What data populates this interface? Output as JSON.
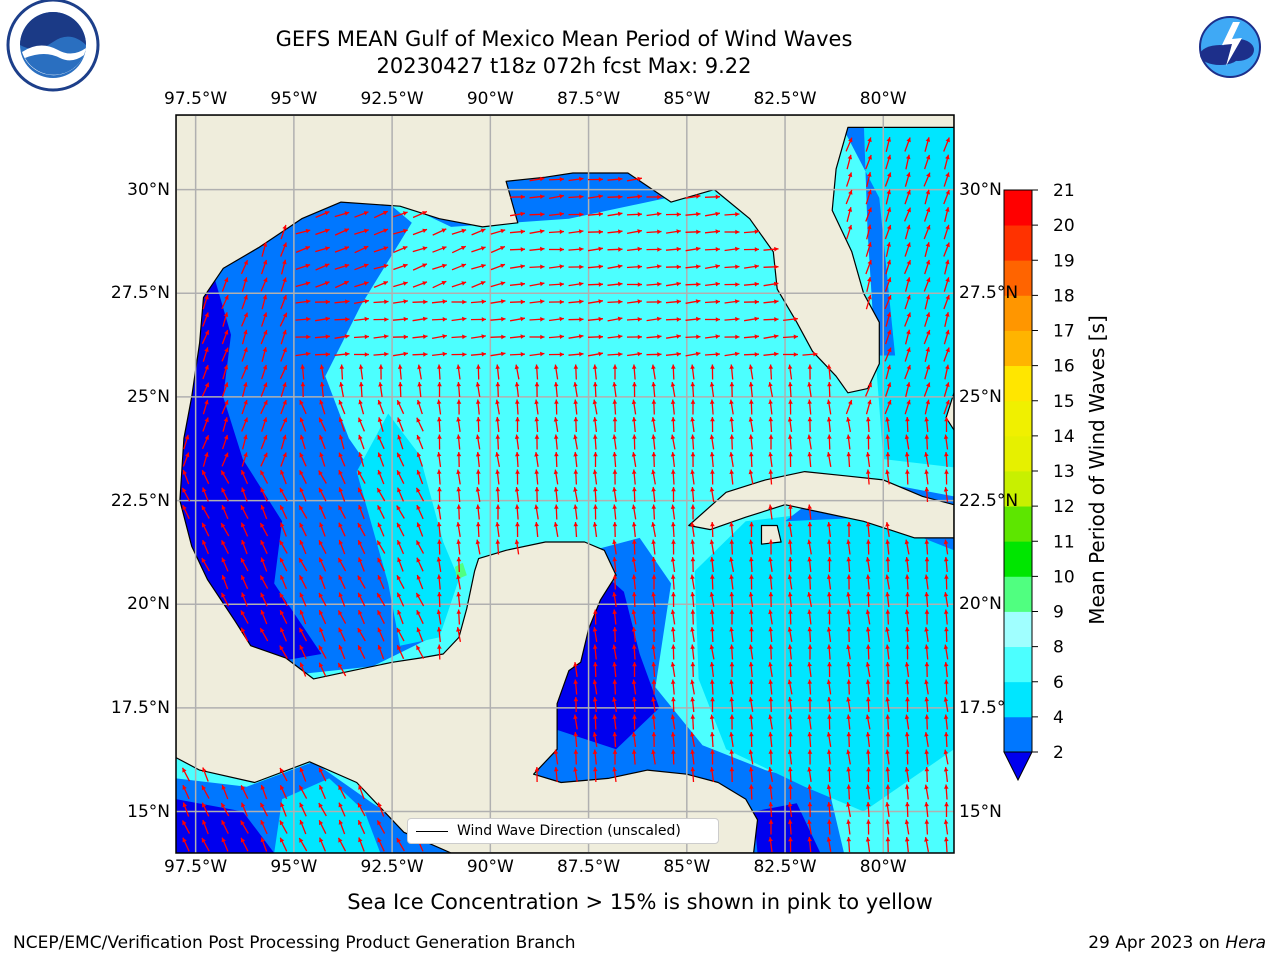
{
  "title": {
    "line1": "GEFS MEAN Gulf of Mexico Mean Period of Wind Waves",
    "line2": "20230427 t18z 072h fcst   Max: 9.22"
  },
  "logos": {
    "left": "noaa-logo",
    "right": "nws-logo"
  },
  "axes": {
    "lon_ticks": [
      "97.5°W",
      "95°W",
      "92.5°W",
      "90°W",
      "87.5°W",
      "85°W",
      "82.5°W",
      "80°W"
    ],
    "lat_ticks": [
      "30°N",
      "27.5°N",
      "25°N",
      "22.5°N",
      "20°N",
      "17.5°N",
      "15°N"
    ],
    "lat_ticks_right": [
      "30°N",
      "27.5°N",
      "25°N",
      "22.5°N",
      "20°N",
      "17.5°",
      "15°N"
    ],
    "lon_range": [
      -98,
      -78.2
    ],
    "lat_range": [
      14,
      31.8
    ],
    "grid": true
  },
  "colorbar": {
    "title": "Mean Period of Wind Waves [s]",
    "ticks": [
      "2",
      "4",
      "6",
      "8",
      "9",
      "10",
      "11",
      "12",
      "13",
      "14",
      "15",
      "16",
      "17",
      "18",
      "19",
      "20",
      "21"
    ],
    "bins": [
      {
        "range": [
          2,
          4
        ],
        "color": "#0077ff"
      },
      {
        "range": [
          4,
          6
        ],
        "color": "#00e6ff"
      },
      {
        "range": [
          6,
          8
        ],
        "color": "#4cffff"
      },
      {
        "range": [
          8,
          9
        ],
        "color": "#a0ffff"
      },
      {
        "range": [
          9,
          10
        ],
        "color": "#50ff80"
      },
      {
        "range": [
          10,
          11
        ],
        "color": "#00e600"
      },
      {
        "range": [
          11,
          12
        ],
        "color": "#5de600"
      },
      {
        "range": [
          12,
          13
        ],
        "color": "#c8f000"
      },
      {
        "range": [
          13,
          14
        ],
        "color": "#e6f000"
      },
      {
        "range": [
          14,
          15
        ],
        "color": "#f0f000"
      },
      {
        "range": [
          15,
          16
        ],
        "color": "#ffe600"
      },
      {
        "range": [
          16,
          17
        ],
        "color": "#ffb400"
      },
      {
        "range": [
          17,
          18
        ],
        "color": "#ff9600"
      },
      {
        "range": [
          18,
          19
        ],
        "color": "#ff6400"
      },
      {
        "range": [
          19,
          20
        ],
        "color": "#ff3200"
      },
      {
        "range": [
          20,
          21
        ],
        "color": "#ff0000"
      }
    ],
    "under_color": "#0000ee"
  },
  "colors": {
    "land": "#efeddc",
    "ocean_default": "#4cffff",
    "arrow": "#ff0000",
    "grid": "#b0b0b0"
  },
  "legend": {
    "label": "Wind Wave Direction (unscaled)"
  },
  "note": "Sea Ice Concentration > 15% is shown in pink to yellow",
  "footer": {
    "left": "NCEP/EMC/Verification Post Processing Product Generation Branch",
    "right_prefix": "29 Apr 2023 on ",
    "right_machine": "Hera"
  }
}
